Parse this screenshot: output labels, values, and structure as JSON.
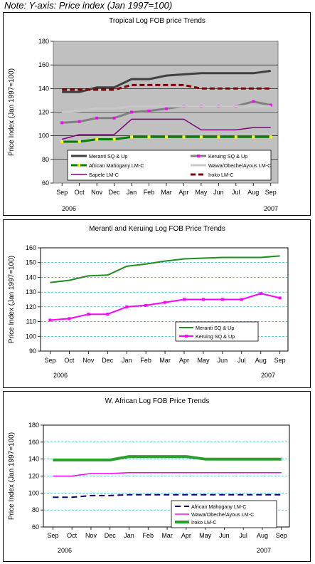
{
  "note": "Note: Y-axis: Price index (Jan 1997=100)",
  "chart_data": [
    {
      "type": "line",
      "title": "Tropical Log FOB price Trends",
      "ylabel": "Price Index (Jan 1997=100)",
      "xlabel": "",
      "categories": [
        "Sep",
        "Oct",
        "Nov",
        "Dec",
        "Jan",
        "Feb",
        "Mar",
        "Apr",
        "May",
        "Jun",
        "Jul",
        "Aug",
        "Sep"
      ],
      "year_labels": [
        "2006",
        "2007"
      ],
      "ylim": [
        60,
        180
      ],
      "yticks": [
        60,
        80,
        100,
        120,
        140,
        160,
        180
      ],
      "grid": true,
      "legend_position": "bottom-center",
      "series": [
        {
          "name": "Meranti SQ & Up",
          "color": "#404040",
          "dash": "",
          "marker": "none",
          "width": 3,
          "values": [
            137,
            137,
            141,
            141,
            148,
            148,
            151,
            152,
            153,
            153,
            153,
            153,
            155
          ]
        },
        {
          "name": "Keruing SQ & Up",
          "color": "#808080",
          "dash": "",
          "marker": "square-magenta",
          "width": 3,
          "values": [
            111,
            112,
            115,
            115,
            120,
            121,
            123,
            125,
            125,
            125,
            125,
            129,
            126
          ]
        },
        {
          "name": "African Mahogany LM-C",
          "color": "#008000",
          "dash": "",
          "marker": "square-yellow",
          "width": 3,
          "values": [
            95,
            95,
            97,
            97,
            99,
            99,
            99,
            99,
            99,
            99,
            99,
            99,
            99
          ]
        },
        {
          "name": "Wawa/Obeche/Ayous LM-C",
          "color": "#c8c8c8",
          "dash": "",
          "marker": "none",
          "width": 3,
          "values": [
            120,
            121,
            123,
            123,
            125,
            125,
            125,
            125,
            125,
            125,
            125,
            125,
            125
          ]
        },
        {
          "name": "Sapele LM-C",
          "color": "#800080",
          "dash": "",
          "marker": "none",
          "width": 1.5,
          "values": [
            97,
            101,
            101,
            101,
            114,
            114,
            114,
            114,
            105,
            105,
            105,
            107,
            107
          ]
        },
        {
          "name": "Iroko LM-C",
          "color": "#800000",
          "dash": "7,4",
          "marker": "none",
          "width": 3,
          "values": [
            139,
            139,
            139,
            139,
            143,
            143,
            143,
            143,
            140,
            140,
            140,
            140,
            140
          ]
        }
      ]
    },
    {
      "type": "line",
      "title": "Meranti and Keruing Log FOB Price Trends",
      "ylabel": "Price Index (Jan 1997=100)",
      "xlabel": "",
      "categories": [
        "Sep",
        "Oct",
        "Nov",
        "Dec",
        "Jan",
        "Feb",
        "Mar",
        "Apr",
        "May",
        "Jun",
        "Jul",
        "Aug",
        "Sep"
      ],
      "year_labels": [
        "2006",
        "2007"
      ],
      "ylim": [
        90,
        160
      ],
      "yticks": [
        90,
        100,
        110,
        120,
        130,
        140,
        150,
        160
      ],
      "grid": true,
      "legend_position": "bottom-right",
      "series": [
        {
          "name": "Meranti SQ & Up",
          "color": "#228b22",
          "dash": "",
          "marker": "none",
          "width": 2,
          "values": [
            136.5,
            138,
            141,
            141.5,
            147.5,
            149,
            151,
            152.5,
            153,
            153.5,
            153.5,
            153.5,
            154.5
          ]
        },
        {
          "name": "Keruing SQ & Up",
          "color": "#ff00ff",
          "dash": "",
          "marker": "square-magenta",
          "width": 2,
          "values": [
            111,
            112,
            115,
            115,
            120,
            121,
            123,
            125,
            125,
            125,
            125,
            129,
            126
          ]
        }
      ]
    },
    {
      "type": "line",
      "title": "W. African Log FOB Price Trends",
      "ylabel": "Price Index (Jan 1997=100)",
      "xlabel": "",
      "categories": [
        "Sep",
        "Oct",
        "Nov",
        "Dec",
        "Jan",
        "Feb",
        "Mar",
        "Apr",
        "May",
        "Jun",
        "Jul",
        "Aug",
        "Sep"
      ],
      "year_labels": [
        "2006",
        "2007"
      ],
      "ylim": [
        60,
        180
      ],
      "yticks": [
        60,
        80,
        100,
        120,
        140,
        160,
        180
      ],
      "grid": true,
      "legend_position": "bottom-right",
      "series": [
        {
          "name": "African Mahogany LM-C",
          "color": "#000080",
          "dash": "8,5",
          "marker": "none",
          "width": 2,
          "values": [
            95,
            95,
            97,
            97,
            98,
            98,
            98,
            98,
            98,
            98,
            98,
            98,
            98
          ]
        },
        {
          "name": "Wawa/Obeche/Ayous LM-C",
          "color": "#ff00ff",
          "dash": "",
          "marker": "none",
          "width": 1.5,
          "values": [
            120,
            120,
            123,
            123,
            124,
            124,
            124,
            124,
            124,
            124,
            124,
            124,
            124
          ]
        },
        {
          "name": "Iroko LM-C",
          "color": "#2ca02c",
          "dash": "",
          "marker": "none",
          "width": 4,
          "values": [
            139,
            139,
            139,
            139,
            143,
            143,
            143,
            143,
            140,
            140,
            140,
            140,
            140
          ]
        }
      ]
    }
  ]
}
